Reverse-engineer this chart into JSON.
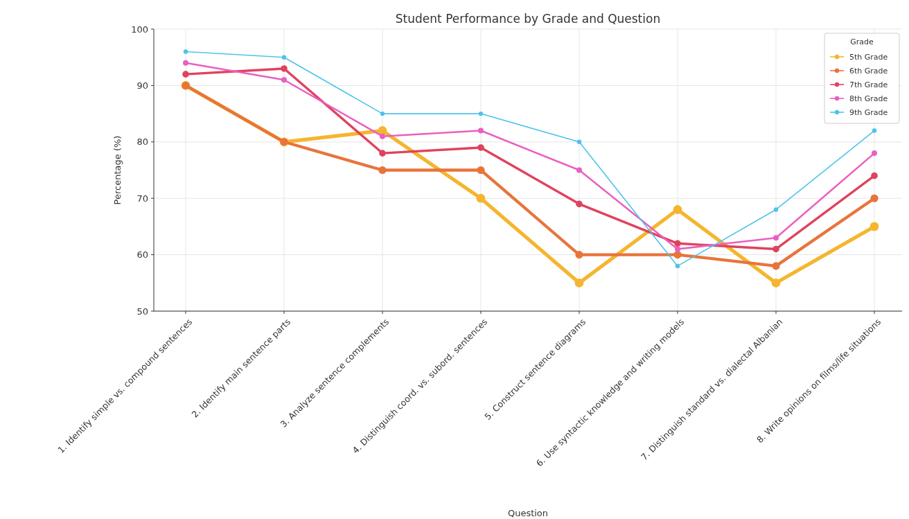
{
  "chart_data": {
    "type": "line",
    "title": "Student Performance by Grade and Question",
    "xlabel": "Question",
    "ylabel": "Percentage (%)",
    "legend_title": "Grade",
    "categories": [
      "1. Identify simple vs. compound sentences",
      "2. Identify main sentence parts",
      "3. Analyze sentence complements",
      "4. Distinguish coord. vs. subord. sentences",
      "5. Construct sentence diagrams",
      "6. Use syntactic knowledge and writing models",
      "7. Distinguish standard vs. dialectal Albanian",
      "8. Write opinions on films/life situations"
    ],
    "series": [
      {
        "name": "5th Grade",
        "color": "#f5b52e",
        "values": [
          90,
          80,
          82,
          70,
          55,
          68,
          55,
          65
        ]
      },
      {
        "name": "6th Grade",
        "color": "#e8743b",
        "values": [
          90,
          80,
          75,
          75,
          60,
          60,
          58,
          70
        ]
      },
      {
        "name": "7th Grade",
        "color": "#e0425d",
        "values": [
          92,
          93,
          78,
          79,
          69,
          62,
          61,
          74
        ]
      },
      {
        "name": "8th Grade",
        "color": "#ea5fc0",
        "values": [
          94,
          91,
          81,
          82,
          75,
          61,
          63,
          78
        ]
      },
      {
        "name": "9th Grade",
        "color": "#4dc3ec",
        "values": [
          96,
          95,
          85,
          85,
          80,
          58,
          68,
          82
        ]
      }
    ],
    "ylim": [
      50,
      100
    ],
    "yticks": [
      50,
      60,
      70,
      80,
      90,
      100
    ],
    "grid": true,
    "legend": "top right",
    "marker": "circle",
    "line_style": "solid"
  }
}
